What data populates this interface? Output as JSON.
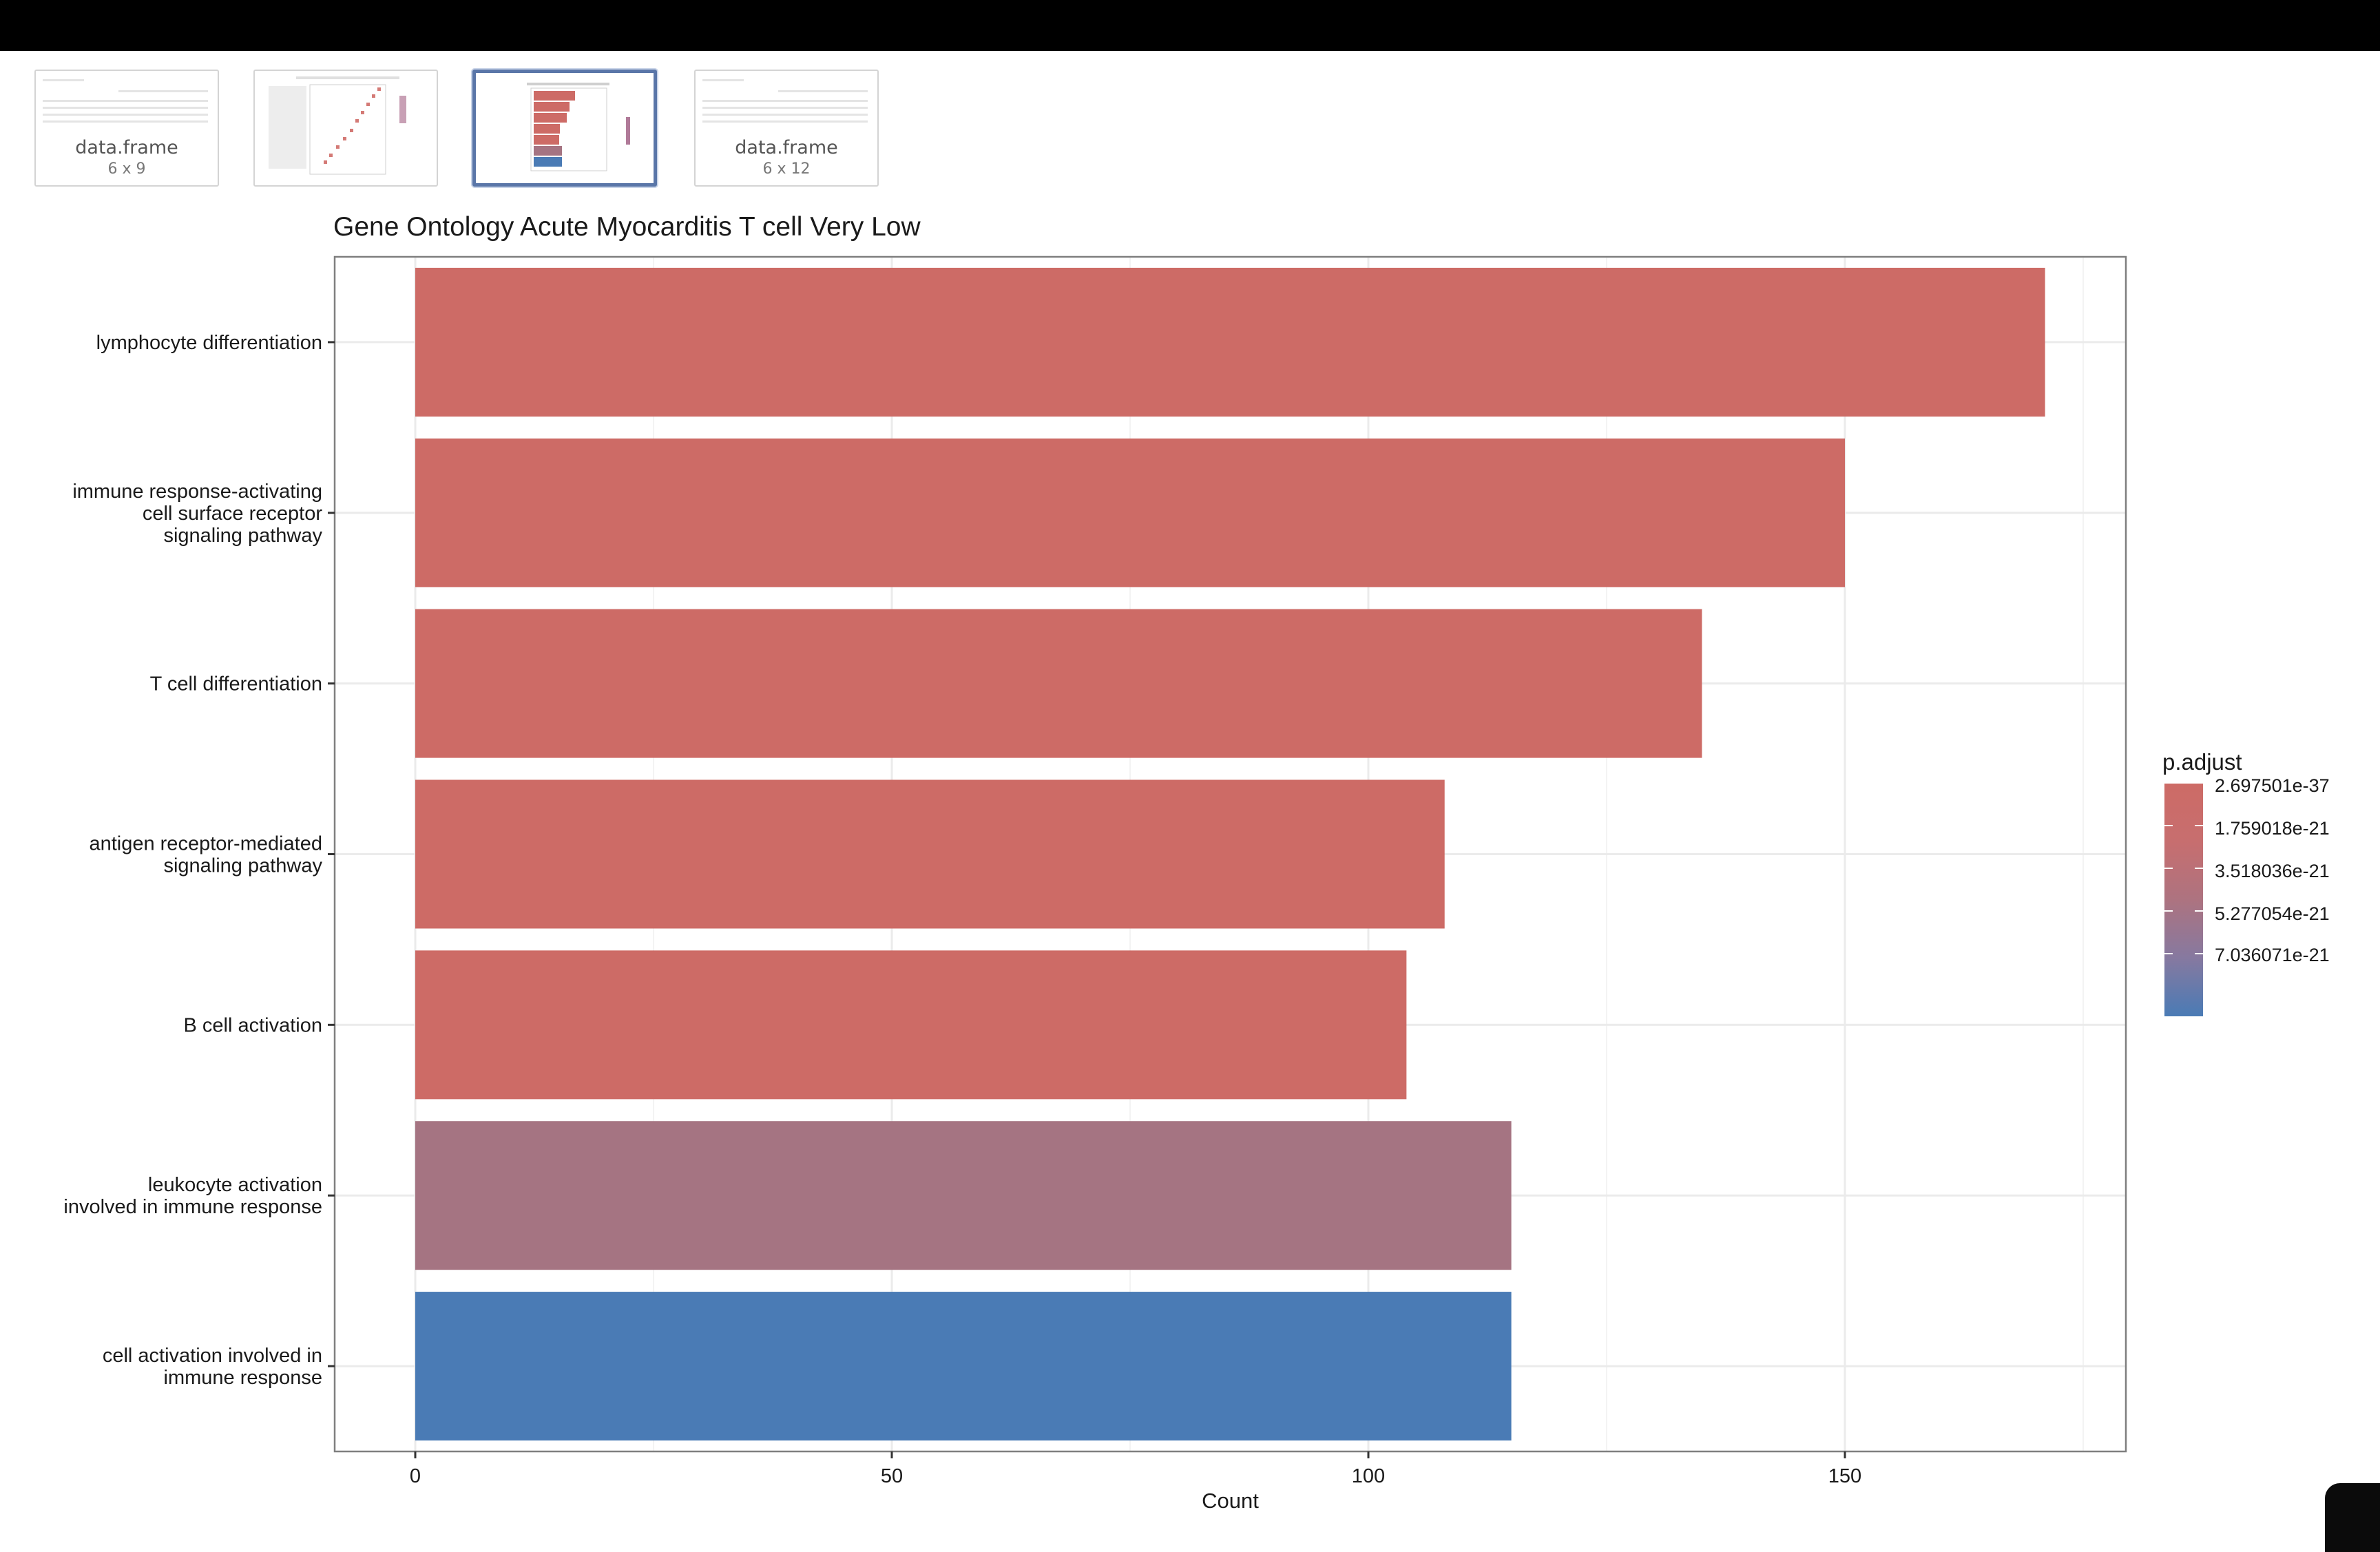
{
  "thumbnails": [
    {
      "kind": "table",
      "title": "data.frame",
      "subtitle": "6 x 9"
    },
    {
      "kind": "dotplot",
      "title": "",
      "subtitle": ""
    },
    {
      "kind": "barplot",
      "title": "",
      "subtitle": "",
      "selected": true
    },
    {
      "kind": "table",
      "title": "data.frame",
      "subtitle": "6 x 12"
    }
  ],
  "colors": {
    "topbar": "#000000",
    "bar_red": "#cd6b66",
    "bar_mid": "#a57482",
    "bar_blue": "#4a7bb5",
    "gridline": "#ebebeb",
    "panel_border": "#7f7f7f",
    "selected_border": "#5a76a8"
  },
  "chart_data": {
    "type": "bar",
    "orientation": "horizontal",
    "title": "Gene Ontology Acute Myocarditis T cell Very Low",
    "xlabel": "Count",
    "ylabel": "",
    "xlim": [
      0,
      180
    ],
    "xticks": [
      0,
      50,
      100,
      150
    ],
    "grid": true,
    "categories": [
      [
        "lymphocyte differentiation"
      ],
      [
        "immune response-activating",
        "cell surface receptor",
        "signaling pathway"
      ],
      [
        "T cell differentiation"
      ],
      [
        "antigen receptor-mediated",
        "signaling pathway"
      ],
      [
        "B cell activation"
      ],
      [
        "leukocyte activation",
        "involved in immune response"
      ],
      [
        "cell activation involved in",
        "immune response"
      ]
    ],
    "values": [
      171,
      150,
      135,
      108,
      104,
      115,
      115
    ],
    "fill": [
      "#cd6b66",
      "#cd6b66",
      "#cd6b66",
      "#cd6b66",
      "#cd6b66",
      "#a57482",
      "#4a7bb5"
    ],
    "legend": {
      "title": "p.adjust",
      "position": "right",
      "labels": [
        "2.697501e-37",
        "1.759018e-21",
        "3.518036e-21",
        "5.277054e-21",
        "7.036071e-21"
      ]
    }
  }
}
